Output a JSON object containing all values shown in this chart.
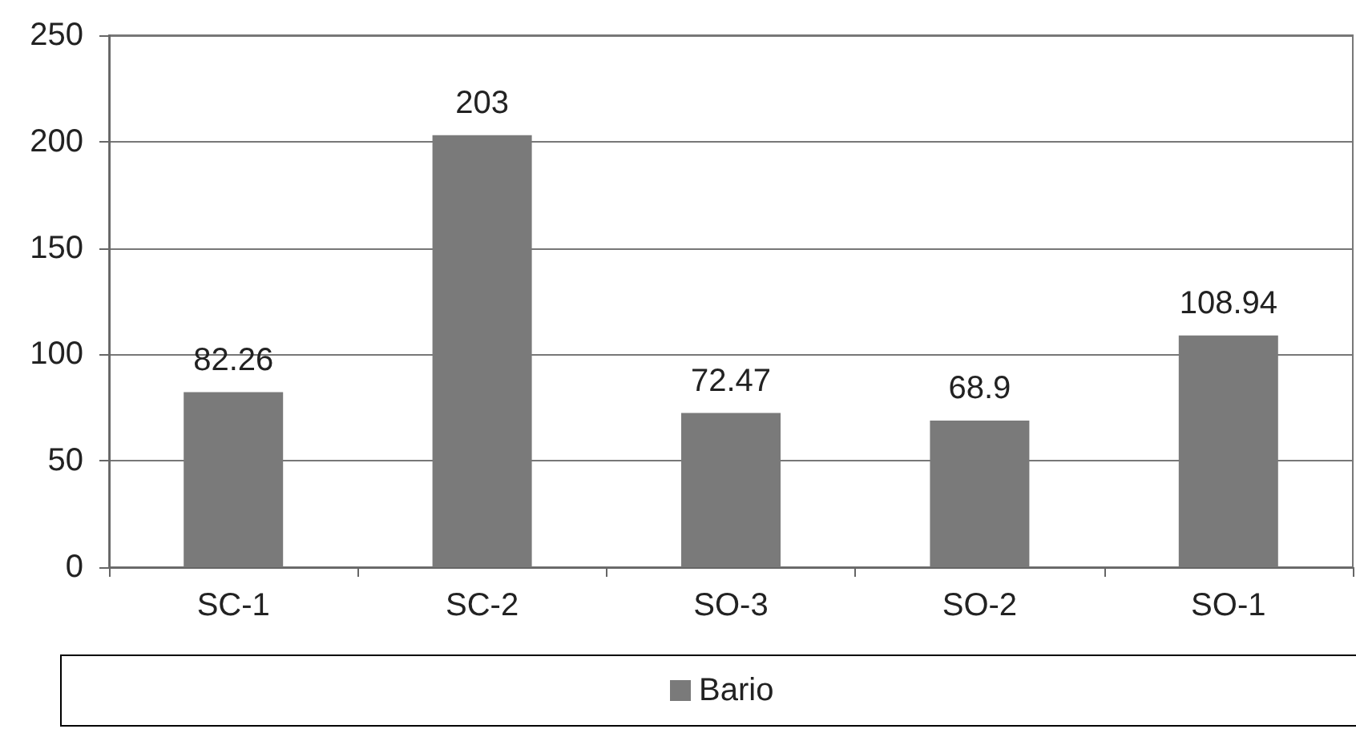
{
  "chart_data": {
    "type": "bar",
    "categories": [
      "SC-1",
      "SC-2",
      "SO-3",
      "SO-2",
      "SO-1"
    ],
    "series": [
      {
        "name": "Bario",
        "color": "#7a7a7a",
        "values": [
          82.26,
          203,
          72.47,
          68.9,
          108.94
        ]
      }
    ],
    "ylim": [
      0,
      250
    ],
    "yticks": [
      0,
      50,
      100,
      150,
      200,
      250
    ],
    "grid": "y",
    "legend": "bottom",
    "data_labels": true
  }
}
